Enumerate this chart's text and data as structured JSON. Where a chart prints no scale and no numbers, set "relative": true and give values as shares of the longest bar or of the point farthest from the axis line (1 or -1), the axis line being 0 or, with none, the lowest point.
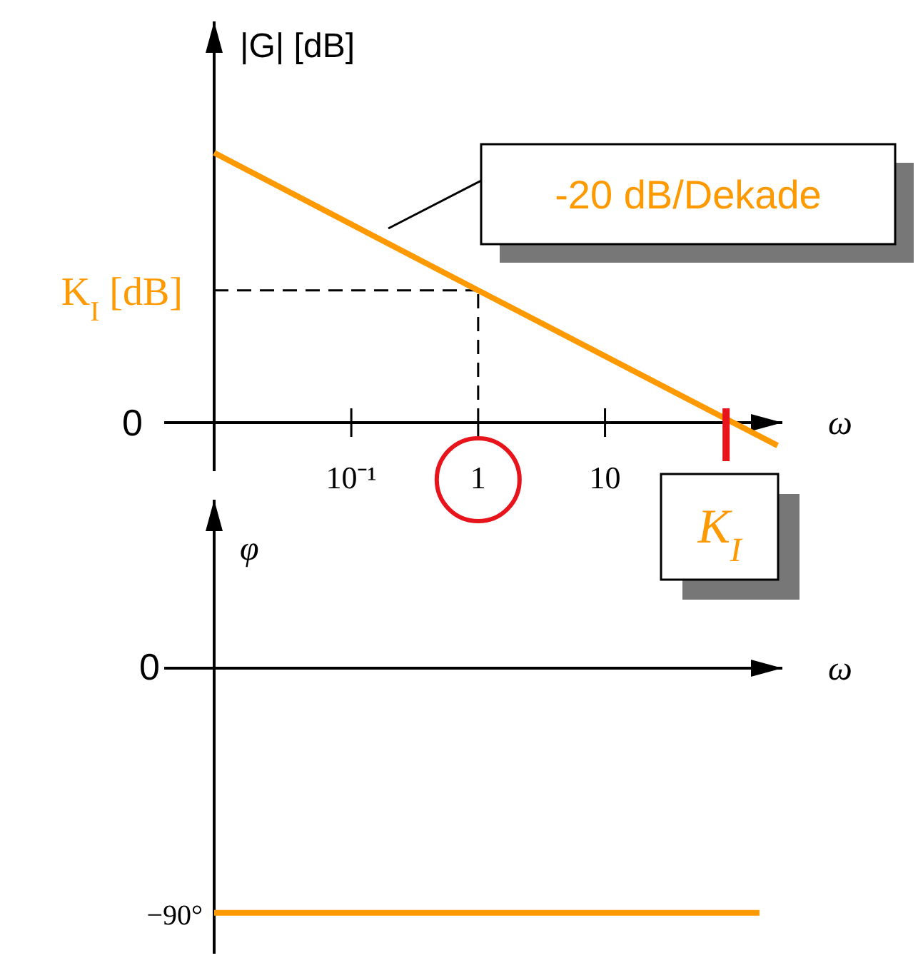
{
  "chart_data": [
    {
      "type": "line",
      "ylabel": "|G| [dB]",
      "xlabel": "ω",
      "log": "x",
      "relative": true,
      "xlim": [
        0.0083,
        250
      ],
      "xticks": [
        {
          "value": 0.1,
          "label": "10⁻¹"
        },
        1,
        10
      ],
      "tick_labels": "x",
      "series": [
        {
          "color": "#ff9900",
          "x": [
            0.0083,
            1,
            229
          ],
          "values": [
            1,
            0.49,
            -0.085
          ]
        }
      ],
      "ref_lines": [
        {
          "axis": "y",
          "value": 0.49,
          "label": "K$_{I}$ [dB]",
          "line_style": "dashed"
        },
        {
          "axis": "x",
          "value": 1,
          "line_style": "dashed"
        }
      ],
      "annotations": [
        "0",
        "-20 dB/Dekade",
        {
          "text": "K$_{I}$",
          "x": 90,
          "y": 0
        }
      ]
    },
    {
      "type": "line",
      "ylabel": "φ",
      "xlabel": "ω",
      "log": "x",
      "xlim": [
        0.0083,
        250
      ],
      "ylim": [
        -105,
        62
      ],
      "yticks": [
        0,
        {
          "value": -90,
          "label": "−90°"
        }
      ],
      "tick_labels": "y",
      "series": [
        {
          "color": "#ff9900",
          "x": [
            0.0083,
            165
          ],
          "values": [
            -90,
            -90
          ]
        }
      ]
    }
  ]
}
